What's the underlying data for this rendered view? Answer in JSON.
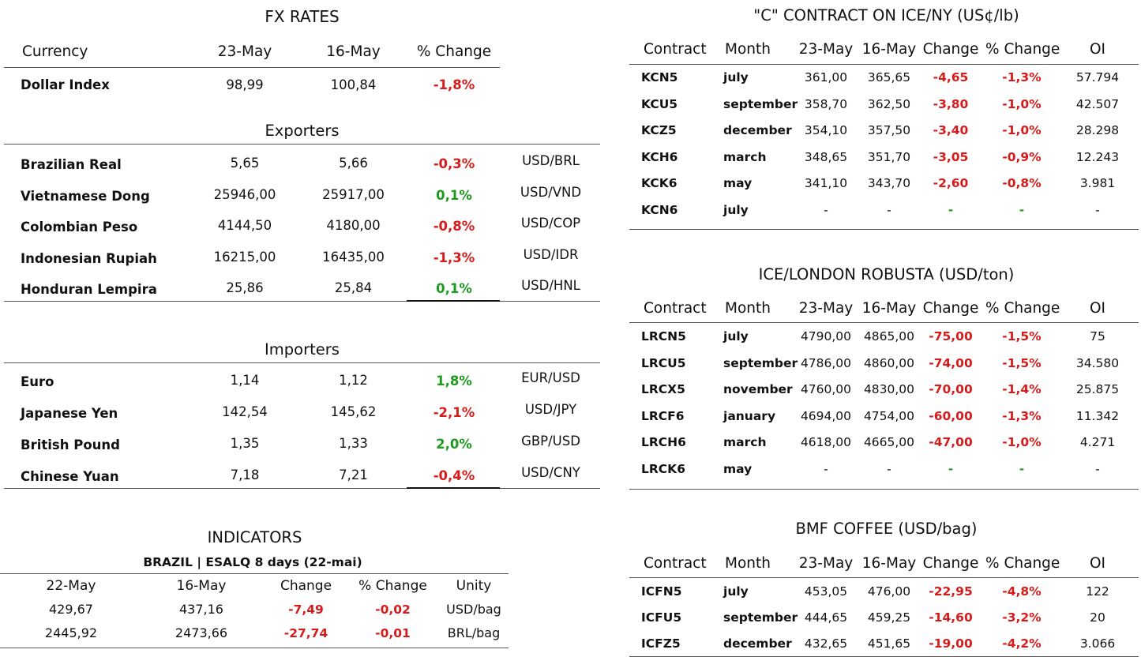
{
  "fx": {
    "title": "FX RATES",
    "headers": [
      "Currency",
      "23-May",
      "16-May",
      "% Change"
    ],
    "dollar_index": {
      "name": "Dollar Index",
      "v1": "98,99",
      "v2": "100,84",
      "pct": "-1,8%"
    },
    "exporters_title": "Exporters",
    "exporters": [
      {
        "name": "Brazilian Real",
        "v1": "5,65",
        "v2": "5,66",
        "pct": "-0,3%",
        "pair": "USD/BRL"
      },
      {
        "name": "Vietnamese Dong",
        "v1": "25946,00",
        "v2": "25917,00",
        "pct": "0,1%",
        "pair": "USD/VND"
      },
      {
        "name": "Colombian Peso",
        "v1": "4144,50",
        "v2": "4180,00",
        "pct": "-0,8%",
        "pair": "USD/COP"
      },
      {
        "name": "Indonesian Rupiah",
        "v1": "16215,00",
        "v2": "16435,00",
        "pct": "-1,3%",
        "pair": "USD/IDR"
      },
      {
        "name": "Honduran Lempira",
        "v1": "25,86",
        "v2": "25,84",
        "pct": "0,1%",
        "pair": "USD/HNL"
      }
    ],
    "importers_title": "Importers",
    "importers": [
      {
        "name": "Euro",
        "v1": "1,14",
        "v2": "1,12",
        "pct": "1,8%",
        "pair": "EUR/USD"
      },
      {
        "name": "Japanese Yen",
        "v1": "142,54",
        "v2": "145,62",
        "pct": "-2,1%",
        "pair": "USD/JPY"
      },
      {
        "name": "British Pound",
        "v1": "1,35",
        "v2": "1,33",
        "pct": "2,0%",
        "pair": "GBP/USD"
      },
      {
        "name": "Chinese Yuan",
        "v1": "7,18",
        "v2": "7,21",
        "pct": "-0,4%",
        "pair": "USD/CNY"
      }
    ]
  },
  "indicators": {
    "title": "INDICATORS",
    "subtitle": "BRAZIL | ESALQ 8 days (22-mai)",
    "headers": [
      "22-May",
      "16-May",
      "Change",
      "% Change",
      "Unity"
    ],
    "rows": [
      [
        "429,67",
        "437,16",
        "-7,49",
        "-0,02",
        "USD/bag"
      ],
      [
        "2445,92",
        "2473,66",
        "-27,74",
        "-0,01",
        "BRL/bag"
      ]
    ]
  },
  "futures": [
    {
      "title": "\"C\" CONTRACT ON ICE/NY (US¢/lb)",
      "headers": [
        "Contract",
        "Month",
        "23-May",
        "16-May",
        "Change",
        "% Change",
        "OI"
      ],
      "rows": [
        [
          "KCN5",
          "july",
          "361,00",
          "365,65",
          "-4,65",
          "-1,3%",
          "57.794"
        ],
        [
          "KCU5",
          "september",
          "358,70",
          "362,50",
          "-3,80",
          "-1,0%",
          "42.507"
        ],
        [
          "KCZ5",
          "december",
          "354,10",
          "357,50",
          "-3,40",
          "-1,0%",
          "28.298"
        ],
        [
          "KCH6",
          "march",
          "348,65",
          "351,70",
          "-3,05",
          "-0,9%",
          "12.243"
        ],
        [
          "KCK6",
          "may",
          "341,10",
          "343,70",
          "-2,60",
          "-0,8%",
          "3.981"
        ],
        [
          "KCN6",
          "july",
          "-",
          "-",
          "-",
          "-",
          "-"
        ]
      ]
    },
    {
      "title": "ICE/LONDON ROBUSTA (USD/ton)",
      "headers": [
        "Contract",
        "Month",
        "23-May",
        "16-May",
        "Change",
        "% Change",
        "OI"
      ],
      "rows": [
        [
          "LRCN5",
          "july",
          "4790,00",
          "4865,00",
          "-75,00",
          "-1,5%",
          "75"
        ],
        [
          "LRCU5",
          "september",
          "4786,00",
          "4860,00",
          "-74,00",
          "-1,5%",
          "34.580"
        ],
        [
          "LRCX5",
          "november",
          "4760,00",
          "4830,00",
          "-70,00",
          "-1,4%",
          "25.875"
        ],
        [
          "LRCF6",
          "january",
          "4694,00",
          "4754,00",
          "-60,00",
          "-1,3%",
          "11.342"
        ],
        [
          "LRCH6",
          "march",
          "4618,00",
          "4665,00",
          "-47,00",
          "-1,0%",
          "4.271"
        ],
        [
          "LRCK6",
          "may",
          "-",
          "-",
          "-",
          "-",
          "-"
        ]
      ]
    },
    {
      "title": "BMF COFFEE (USD/bag)",
      "headers": [
        "Contract",
        "Month",
        "23-May",
        "16-May",
        "Change",
        "% Change",
        "OI"
      ],
      "rows": [
        [
          "ICFN5",
          "july",
          "453,05",
          "476,00",
          "-22,95",
          "-4,8%",
          "122"
        ],
        [
          "ICFU5",
          "september",
          "444,65",
          "459,25",
          "-14,60",
          "-3,2%",
          "20"
        ],
        [
          "ICFZ5",
          "december",
          "432,65",
          "451,65",
          "-19,00",
          "-4,2%",
          "3.066"
        ]
      ]
    }
  ],
  "colors": {
    "negative": "#d61b1b",
    "positive": "#1e9a1e"
  }
}
